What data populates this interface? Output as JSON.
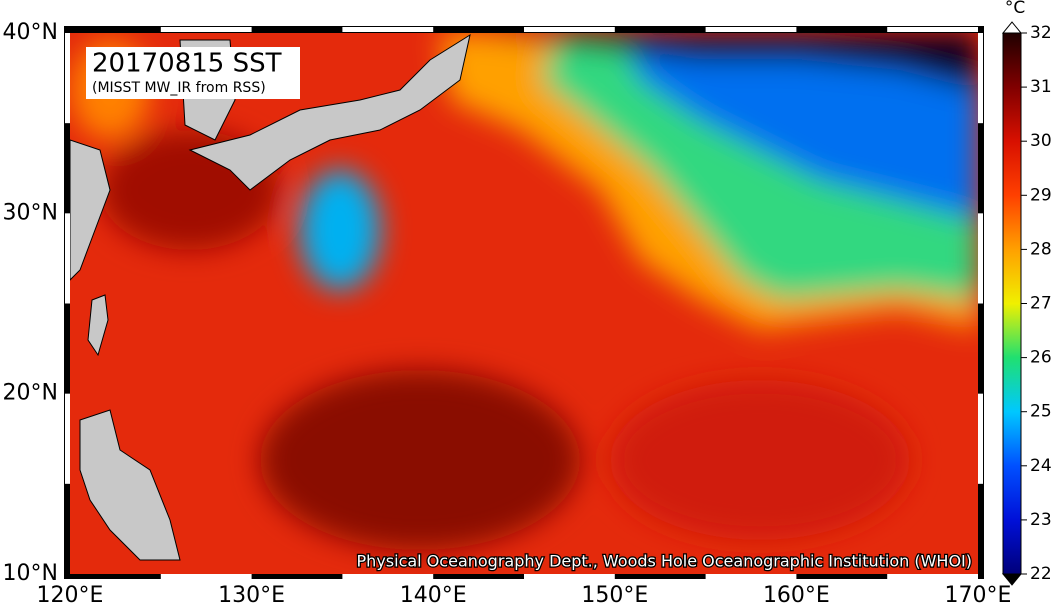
{
  "map": {
    "title": "20170815 SST",
    "subtitle": "(MISST MW_IR from RSS)",
    "credit": "Physical Oceanography Dept., Woods Hole Oceanographic Institution (WHOI)",
    "lon_range": [
      120,
      170
    ],
    "lat_range": [
      10,
      40
    ],
    "lon_ticks": [
      {
        "value": 120,
        "label": "120°E"
      },
      {
        "value": 130,
        "label": "130°E"
      },
      {
        "value": 140,
        "label": "140°E"
      },
      {
        "value": 150,
        "label": "150°E"
      },
      {
        "value": 160,
        "label": "160°E"
      },
      {
        "value": 170,
        "label": "170°E"
      }
    ],
    "lat_ticks": [
      {
        "value": 10,
        "label": "10°N"
      },
      {
        "value": 20,
        "label": "20°N"
      },
      {
        "value": 30,
        "label": "30°N"
      },
      {
        "value": 40,
        "label": "40°N"
      }
    ]
  },
  "colorbar": {
    "unit": "°C",
    "range": [
      22,
      32
    ],
    "ticks": [
      22,
      23,
      24,
      25,
      26,
      27,
      28,
      29,
      30,
      31,
      32
    ]
  }
}
